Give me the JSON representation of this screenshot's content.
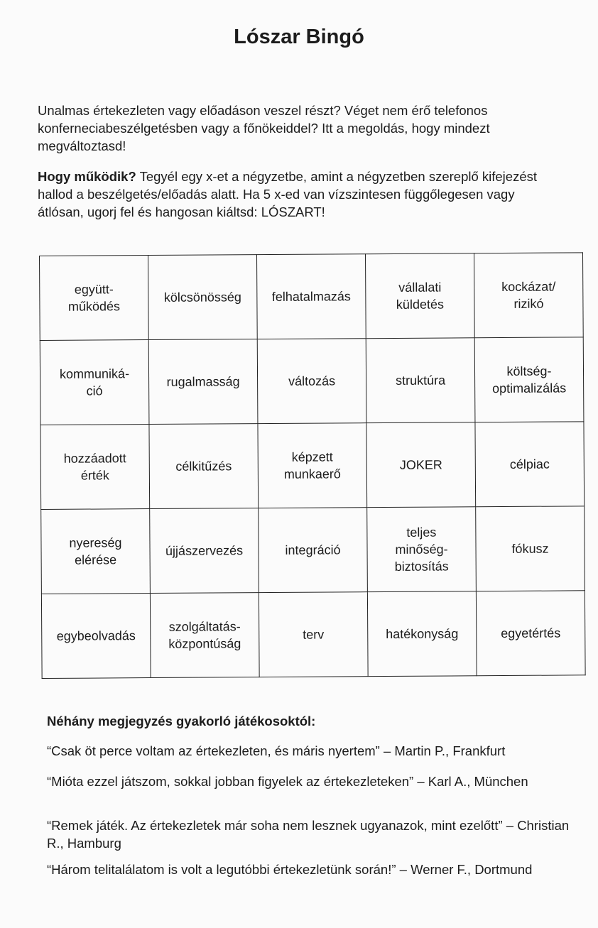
{
  "title": "Lószar Bingó",
  "intro": "Unalmas értekezleten vagy előadáson veszel részt? Véget nem érő telefonos konferneciabeszélgetésben vagy a főnökeiddel? Itt a megoldás, hogy mindezt megváltoztasd!",
  "how": {
    "label": "Hogy működik?",
    "text": " Tegyél egy x-et a négyzetbe, amint a négyzetben szereplő kifejezést hallod a beszélgetés/előadás alatt. Ha 5 x-ed van vízszintesen függőlegesen vagy átlósan, ugorj fel és hangosan kiáltsd: LÓSZART!"
  },
  "grid": [
    [
      "együtt-\nműködés",
      "kölcsönösség",
      "felhatalmazás",
      "vállalati\nküldetés",
      "kockázat/\nrizikó"
    ],
    [
      "kommuniká-\nció",
      "rugalmasság",
      "változás",
      "struktúra",
      "költség-\noptimalizálás"
    ],
    [
      "hozzáadott\nérték",
      "célkitűzés",
      "képzett\nmunkaerő",
      "JOKER",
      "célpiac"
    ],
    [
      "nyereség\nelérése",
      "újjászervezés",
      "integráció",
      "teljes\nminőség-\nbiztosítás",
      "fókusz"
    ],
    [
      "egybeolvadás",
      "szolgáltatás-\nközpontúság",
      "terv",
      "hatékonyság",
      "egyetértés"
    ]
  ],
  "notes": {
    "heading": "Néhány megjegyzés gyakorló játékosoktól:",
    "quotes": [
      "“Csak öt perce voltam az értekezleten, és máris nyertem” – Martin P., Frankfurt",
      "“Mióta ezzel játszom, sokkal jobban figyelek az értekezleteken” – Karl A., München",
      "“Remek játék. Az értekezletek már soha nem lesznek ugyanazok, mint ezelőtt” – Christian R., Hamburg",
      "“Három telitalálatom is volt  a legutóbbi értekezletünk során!” – Werner F., Dortmund"
    ]
  }
}
